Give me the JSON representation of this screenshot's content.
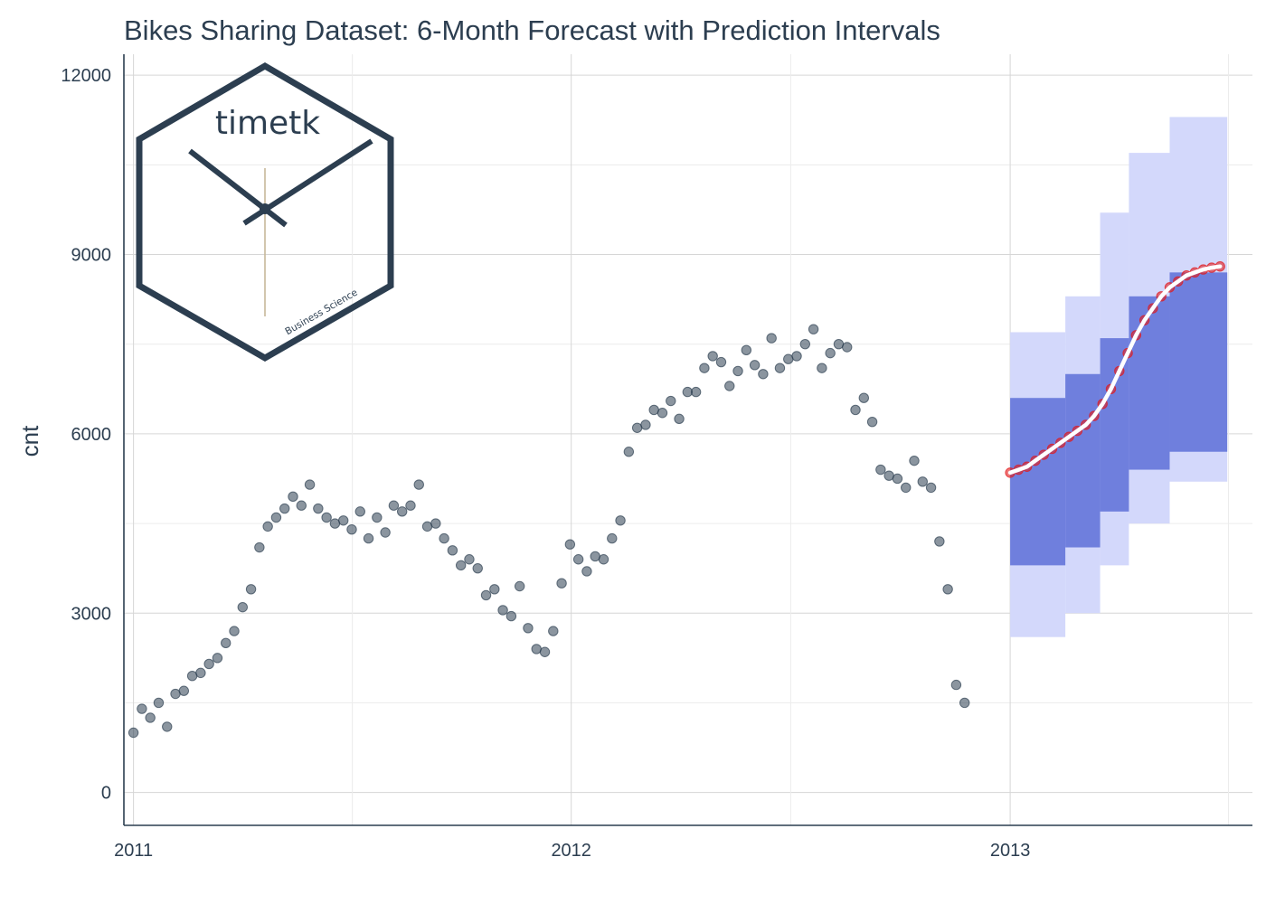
{
  "colors": {
    "actual_points": "#2c3e50",
    "forecast_points": "#e31a1c",
    "forecast_line": "#ffffff",
    "pi_80": "#6f7fdd",
    "pi_95": "#d3d8fb",
    "text": "#2c3e50",
    "grid": "#d6d6d6"
  },
  "logo": {
    "word": "timetk",
    "caption": "Business Science",
    "icon": "hexagon-clock-icon"
  },
  "chart_data": {
    "type": "scatter",
    "title": "Bikes Sharing Dataset: 6-Month Forecast with Prediction Intervals",
    "xlabel": "",
    "ylabel": "cnt",
    "xlim": [
      "2010-12-24",
      "2013-07-22"
    ],
    "ylim": [
      -550,
      12350
    ],
    "x_ticks": [
      "2011",
      "2012",
      "2013"
    ],
    "y_ticks": [
      0,
      3000,
      6000,
      9000,
      12000
    ],
    "grid": true,
    "legend": "none",
    "series": [
      {
        "kind": "actual",
        "x_start": "2011-01-01",
        "x_interval_days": 7,
        "values": [
          1000,
          1400,
          1250,
          1500,
          1100,
          1650,
          1700,
          1950,
          2000,
          2150,
          2250,
          2500,
          2700,
          3100,
          3400,
          4100,
          4450,
          4600,
          4750,
          4950,
          4800,
          5150,
          4750,
          4600,
          4500,
          4550,
          4400,
          4700,
          4250,
          4600,
          4350,
          4800,
          4700,
          4800,
          5150,
          4450,
          4500,
          4250,
          4050,
          3800,
          3900,
          3750,
          3300,
          3400,
          3050,
          2950,
          3450,
          2750,
          2400,
          2350,
          2700,
          3500,
          4150,
          3900,
          3700,
          3950,
          3900,
          4250,
          4550,
          5700,
          6100,
          6150,
          6400,
          6350,
          6550,
          6250,
          6700,
          6700,
          7100,
          7300,
          7200,
          6800,
          7050,
          7400,
          7150,
          7000,
          7600,
          7100,
          7250,
          7300,
          7500,
          7750,
          7100,
          7350,
          7500,
          7450,
          6400,
          6600,
          6200,
          5400,
          5300,
          5250,
          5100,
          5550,
          5200,
          5100,
          4200,
          3400,
          1800,
          1500
        ]
      },
      {
        "kind": "forecast",
        "x_start": "2013-01-01",
        "x_interval_days": 7,
        "values": [
          5350,
          5400,
          5450,
          5550,
          5650,
          5750,
          5850,
          5950,
          6050,
          6150,
          6300,
          6500,
          6750,
          7050,
          7350,
          7650,
          7900,
          8100,
          8300,
          8450,
          8550,
          8650,
          8700,
          8750,
          8780,
          8800
        ],
        "pi_80": [
          [
            3800,
            6600
          ],
          [
            4100,
            7000
          ],
          [
            4700,
            7600
          ],
          [
            5400,
            8300
          ],
          [
            5700,
            8700
          ]
        ],
        "pi_95": [
          [
            2600,
            7700
          ],
          [
            3000,
            8300
          ],
          [
            3800,
            9700
          ],
          [
            4500,
            10700
          ],
          [
            5200,
            11300
          ]
        ],
        "pi_step_boundaries": [
          "2013-01-01",
          "2013-02-16",
          "2013-03-17",
          "2013-04-10",
          "2013-05-14",
          "2013-07-01"
        ]
      }
    ]
  }
}
